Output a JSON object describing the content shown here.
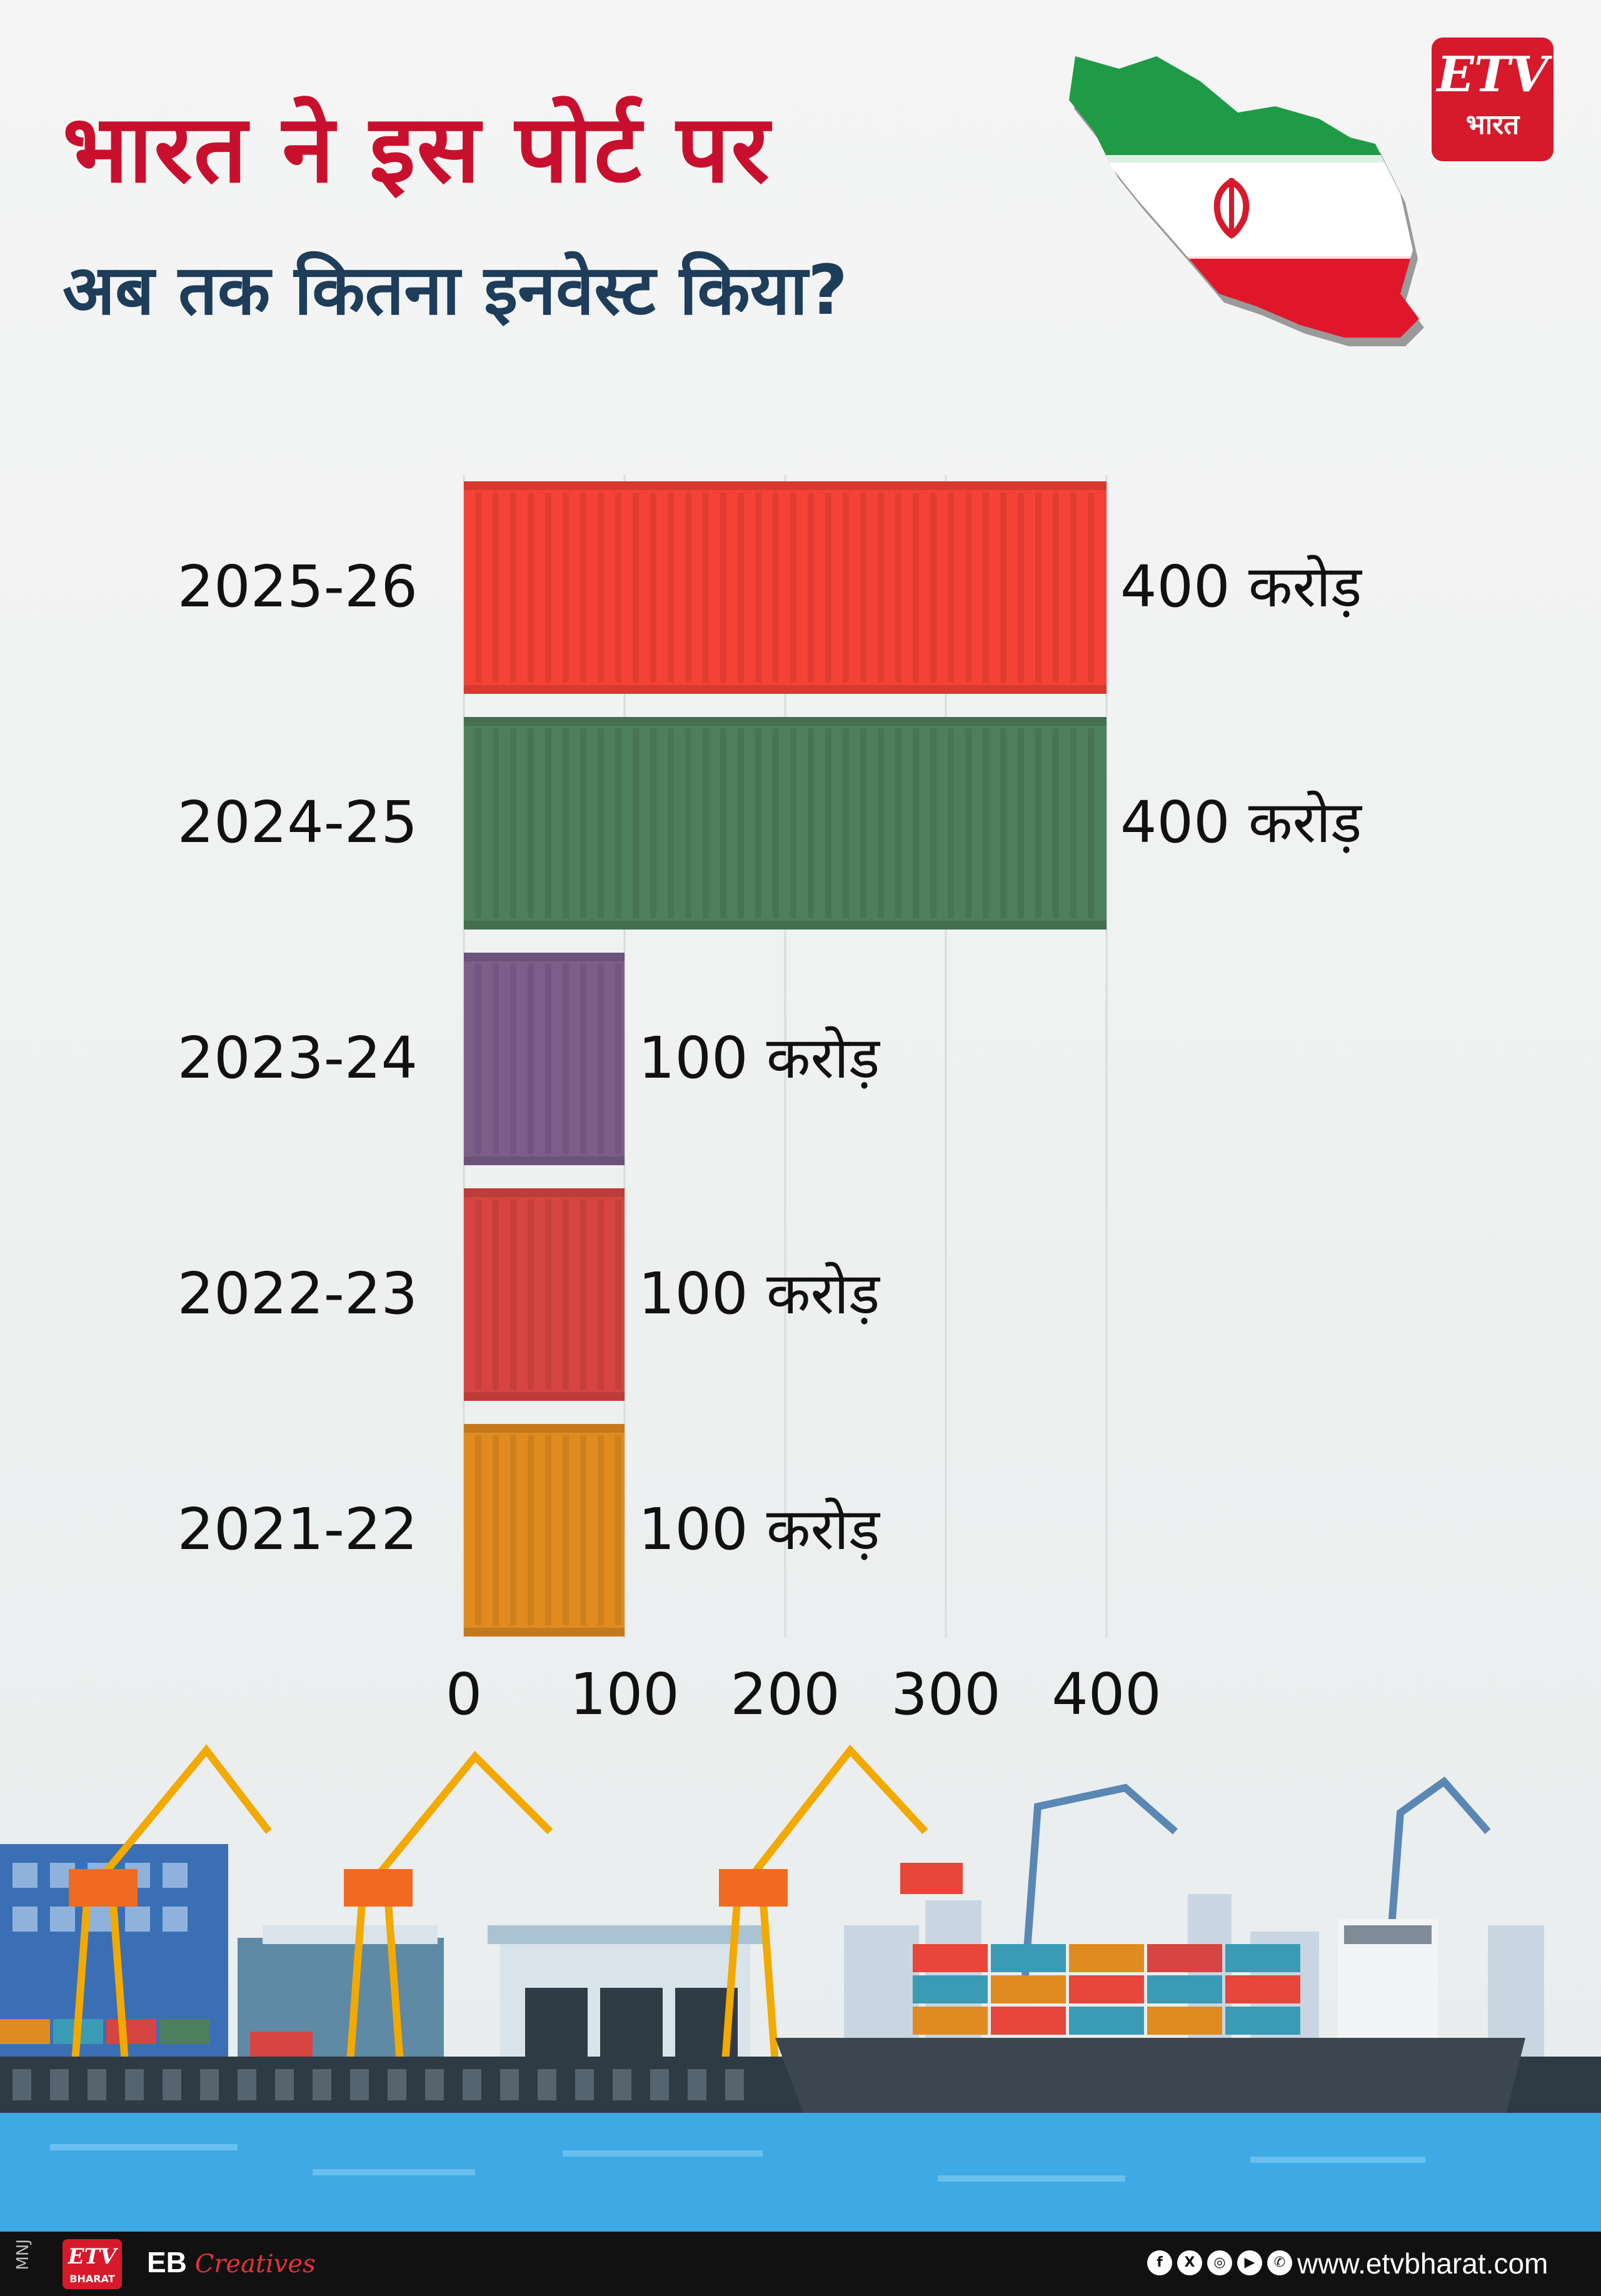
{
  "header": {
    "title_line1": "भारत ने इस पोर्ट पर",
    "title_line2": "अब तक कितना इनवेस्ट किया?"
  },
  "logo": {
    "brand": "ETV",
    "sub": "भारत"
  },
  "chart_data": {
    "type": "bar",
    "orientation": "horizontal",
    "categories": [
      "2025-26",
      "2024-25",
      "2023-24",
      "2022-23",
      "2021-22"
    ],
    "values": [
      400,
      400,
      100,
      100,
      100
    ],
    "value_labels": [
      "400 करोड़",
      "400 करोड़",
      "100 करोड़",
      "100 करोड़",
      "100 करोड़"
    ],
    "bar_colors": [
      "#f44336",
      "#4e7f5c",
      "#7d5e8a",
      "#d64541",
      "#e08b1f"
    ],
    "xlim": [
      0,
      400
    ],
    "x_ticks": [
      "0",
      "100",
      "200",
      "300",
      "400"
    ],
    "grid": true
  },
  "footer": {
    "tag": "MNJ",
    "logo_brand": "ETV",
    "logo_sub": "BHARAT",
    "credit_main": "EB",
    "credit_script": "Creatives",
    "social_icons": [
      "facebook-icon",
      "x-icon",
      "instagram-icon",
      "youtube-icon",
      "whatsapp-icon"
    ],
    "website": "www.etvbharat.com"
  }
}
